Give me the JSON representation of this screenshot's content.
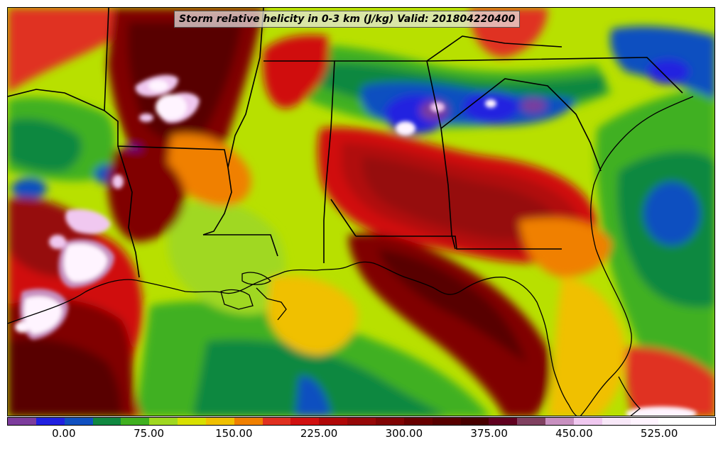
{
  "title": "Storm relative helicity in 0-3 km (J/kg) Valid: 201804220400",
  "colorbar": {
    "min": -50,
    "max": 575,
    "step": 25,
    "colors": [
      "#7c3c9c",
      "#2020e0",
      "#1050c0",
      "#108840",
      "#40b020",
      "#a0d820",
      "#d8e000",
      "#f0c000",
      "#f08000",
      "#e03020",
      "#d01010",
      "#b00808",
      "#960808",
      "#800404",
      "#680000",
      "#580000",
      "#480000",
      "#600020",
      "#804060",
      "#c890c0",
      "#f0c8f0",
      "#f8e8f8",
      "#fff4ff",
      "#ffffff",
      "#ffffff"
    ],
    "tick_values": [
      0,
      75,
      150,
      225,
      300,
      375,
      450,
      525
    ],
    "tick_labels": [
      "0.00",
      "75.00",
      "150.00",
      "225.00",
      "300.00",
      "375.00",
      "450.00",
      "525.00"
    ]
  }
}
